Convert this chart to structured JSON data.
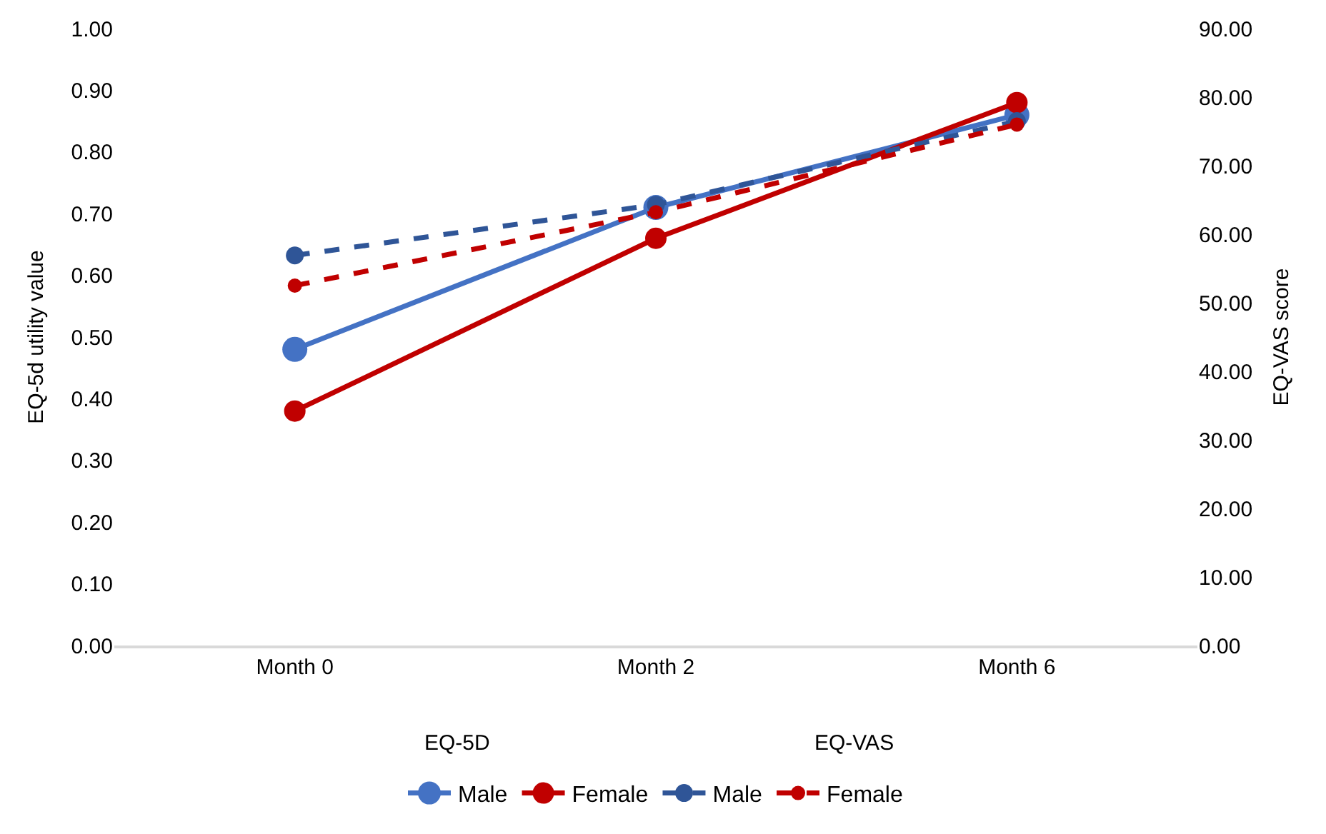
{
  "chart_data": {
    "type": "line",
    "categories": [
      "Month 0",
      "Month 2",
      "Month 6"
    ],
    "ylabel": "EQ-5d utility value",
    "y2label": "EQ-VAS score",
    "ylim": [
      0,
      1
    ],
    "yticks": [
      {
        "value": 0,
        "label": "0.00"
      },
      {
        "value": 0.1,
        "label": "0.10"
      },
      {
        "value": 0.2,
        "label": "0.20"
      },
      {
        "value": 0.3,
        "label": "0.30"
      },
      {
        "value": 0.4,
        "label": "0.40"
      },
      {
        "value": 0.5,
        "label": "0.50"
      },
      {
        "value": 0.6,
        "label": "0.60"
      },
      {
        "value": 0.7,
        "label": "0.70"
      },
      {
        "value": 0.8,
        "label": "0.80"
      },
      {
        "value": 0.9,
        "label": "0.90"
      },
      {
        "value": 1,
        "label": "1.00"
      }
    ],
    "y2lim": [
      0,
      90
    ],
    "y2ticks": [
      {
        "value": 0,
        "label": "0.00"
      },
      {
        "value": 10,
        "label": "10.00"
      },
      {
        "value": 20,
        "label": "20.00"
      },
      {
        "value": 30,
        "label": "30.00"
      },
      {
        "value": 40,
        "label": "40.00"
      },
      {
        "value": 50,
        "label": "50.00"
      },
      {
        "value": 60,
        "label": "60.00"
      },
      {
        "value": 70,
        "label": "70.00"
      },
      {
        "value": 80,
        "label": "80.00"
      },
      {
        "value": 90,
        "label": "90.00"
      }
    ],
    "annotations": [
      "EQ-5D",
      "EQ-VAS"
    ],
    "grid": false,
    "legend": "bottom",
    "marker": "circle",
    "series": [
      {
        "name": "Male",
        "color": "#4472c4",
        "values": [
          0.48,
          0.71,
          0.86
        ],
        "line_style": "solid"
      },
      {
        "name": "Female",
        "color": "#c00000",
        "values": [
          0.38,
          0.66,
          0.88
        ],
        "line_style": "solid"
      },
      {
        "name": "Male",
        "color": "#2f5597",
        "values": [
          56.9,
          64.3,
          76.5
        ],
        "line_style": "dashed",
        "axis": "y2"
      },
      {
        "name": "Female",
        "color": "#c00000",
        "values": [
          52.5,
          63.2,
          76.0
        ],
        "line_style": "dashed",
        "axis": "y2"
      }
    ]
  }
}
